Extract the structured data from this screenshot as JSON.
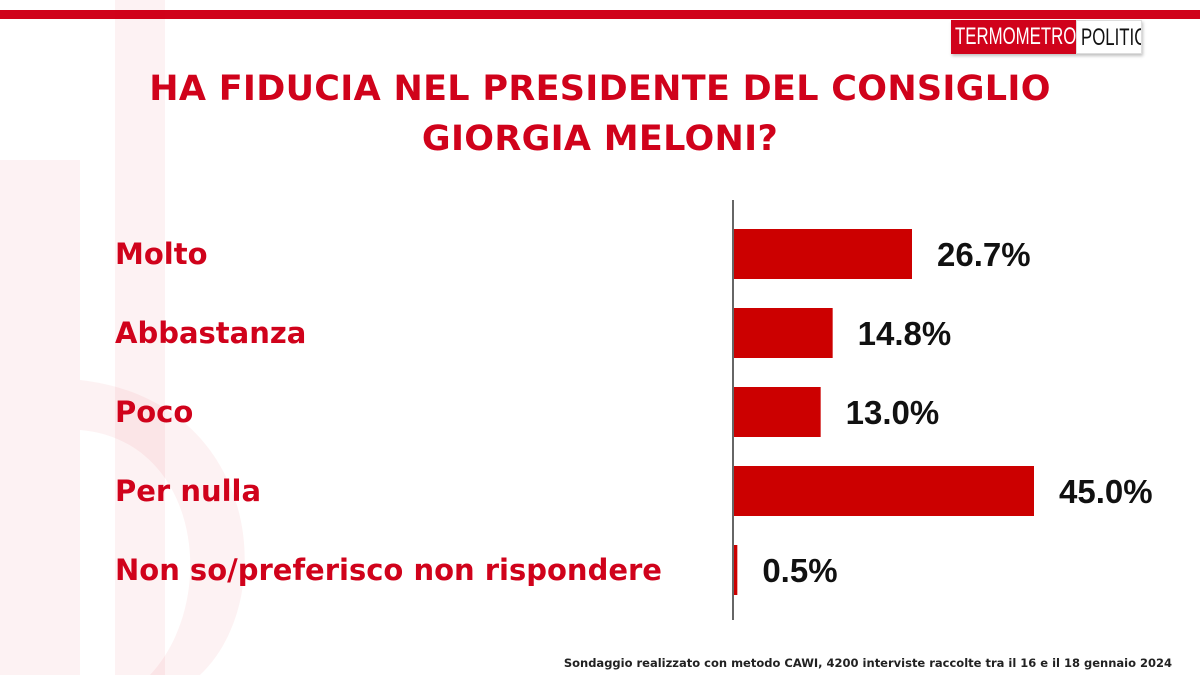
{
  "header": {
    "logo_part1": "TERMOMETRO",
    "logo_part2": "POLITICO",
    "title_line1": "HA FIDUCIA NEL PRESIDENTE DEL CONSIGLIO",
    "title_line2": "GIORGIA MELONI?"
  },
  "colors": {
    "accent": "#d0021b",
    "bar": "#cc0000",
    "value_text": "#111111"
  },
  "chart_data": {
    "type": "bar",
    "orientation": "horizontal",
    "title": "HA FIDUCIA NEL PRESIDENTE DEL CONSIGLIO GIORGIA MELONI?",
    "categories": [
      "Molto",
      "Abbastanza",
      "Poco",
      "Per nulla",
      "Non so/preferisco non rispondere"
    ],
    "values": [
      26.7,
      14.8,
      13.0,
      45.0,
      0.5
    ],
    "value_labels": [
      "26.7%",
      "14.8%",
      "13.0%",
      "45.0%",
      "0.5%"
    ],
    "unit": "%",
    "xlim": [
      0,
      45
    ],
    "grid": false,
    "legend": "none"
  },
  "footnote": "Sondaggio realizzato con metodo CAWI, 4200 interviste raccolte tra il 16 e il 18 gennaio 2024"
}
